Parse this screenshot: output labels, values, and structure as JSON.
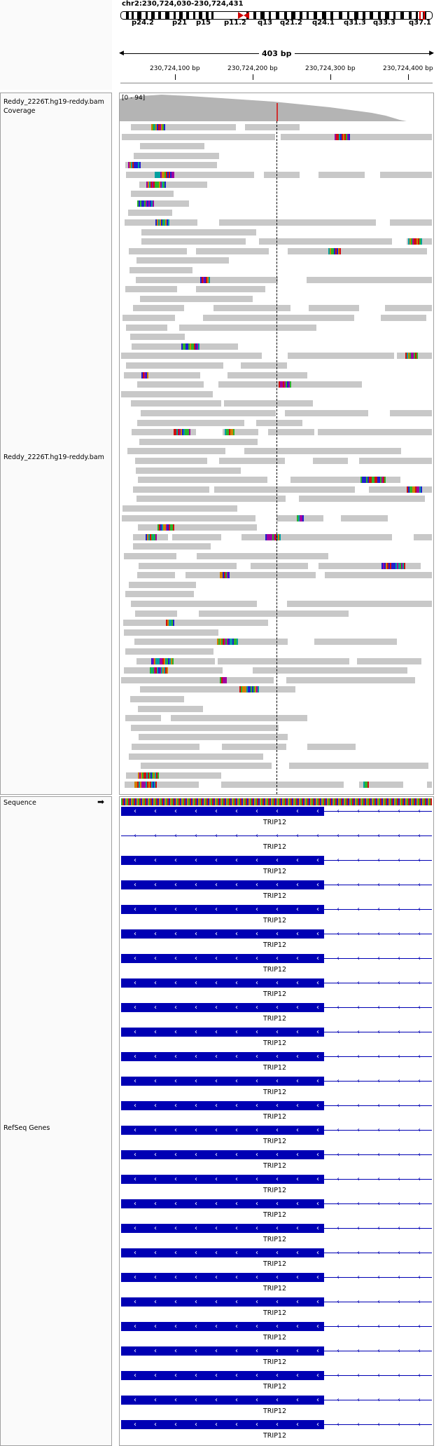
{
  "header": {
    "locus": "chr2:230,724,030-230,724,431",
    "bands": [
      "p24.2",
      "p21",
      "p15",
      "p11.2",
      "q13",
      "q21.2",
      "q24.1",
      "q31.3",
      "q33.3",
      "q37.1"
    ],
    "span_label": "403 bp",
    "ruler_ticks": [
      "230,724,100 bp",
      "230,724,200 bp",
      "230,724,300 bp",
      "230,724,400 bp"
    ]
  },
  "tracks": {
    "coverage_label": "Reddy_2226T.hg19-reddy.bam Coverage",
    "coverage_range": "[0 - 94]",
    "alignment_label": "Reddy_2226T.hg19-reddy.bam",
    "sequence_label": "Sequence",
    "sequence_arrow": "➡",
    "genes_label": "RefSeq Genes"
  },
  "gene": {
    "name": "TRIP12",
    "isoform_count": 26
  },
  "colors": {
    "gene": "#0000b4",
    "read": "#c8c8c8",
    "coverage": "#b4b4b4",
    "center_line": "#000000"
  }
}
